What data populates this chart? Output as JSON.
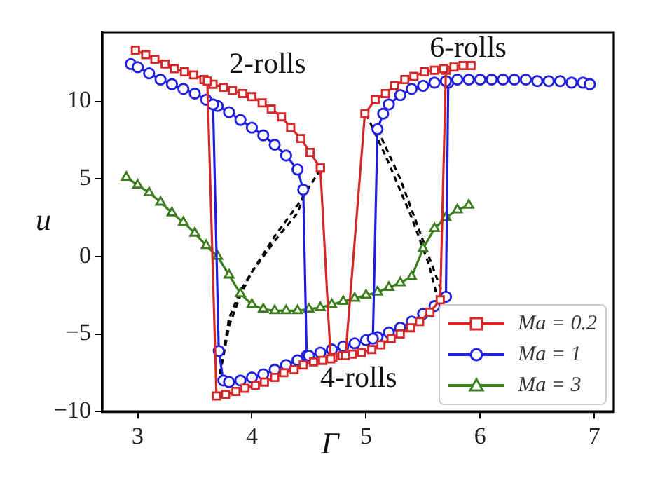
{
  "chart_data": {
    "type": "line",
    "xlabel": "Γ",
    "ylabel": "u",
    "xlim": [
      2.69,
      7.17
    ],
    "ylim": [
      -10,
      14.45
    ],
    "xticks": [
      3,
      4,
      5,
      6,
      7
    ],
    "yticks": [
      -10,
      -5,
      0,
      5,
      10
    ],
    "grid": false,
    "legend": "bottom right",
    "annotations": [
      "2-rolls",
      "6-rolls",
      "4-rolls"
    ],
    "series": [
      {
        "name": "Ma = 0.2",
        "color": "#d62728",
        "marker": "square",
        "line_style": "solid",
        "x": [
          2.98,
          3.07,
          3.15,
          3.24,
          3.32,
          3.41,
          3.49,
          3.58,
          3.66,
          3.75,
          3.83,
          3.92,
          4.0,
          4.09,
          4.17,
          4.26,
          4.34,
          4.43,
          4.51,
          4.6,
          null,
          3.61,
          3.69,
          3.77,
          3.86,
          3.94,
          4.03,
          4.11,
          4.2,
          4.28,
          4.37,
          4.45,
          4.54,
          4.62,
          4.71,
          4.79,
          4.88,
          4.96,
          5.05,
          5.13,
          5.22,
          5.3,
          5.39,
          5.47,
          5.56,
          5.65,
          5.7,
          null,
          4.6,
          4.69,
          null,
          4.82,
          4.99,
          5.08,
          5.17,
          5.25,
          5.34,
          5.42,
          5.51,
          5.6,
          5.68,
          5.77,
          5.85,
          5.92
        ],
        "values": [
          13.3,
          13.0,
          12.7,
          12.4,
          12.1,
          11.9,
          11.7,
          11.4,
          11.1,
          10.9,
          10.7,
          10.5,
          10.3,
          9.9,
          9.5,
          9.0,
          8.3,
          7.6,
          6.7,
          5.7,
          null,
          11.3,
          -9.0,
          -8.9,
          -8.7,
          -8.5,
          -8.3,
          -8.1,
          -7.8,
          -7.5,
          -7.3,
          -7.0,
          -6.8,
          -6.7,
          -6.5,
          -6.4,
          -6.3,
          -6.2,
          -6.0,
          -5.7,
          -5.3,
          -5.0,
          -4.6,
          -4.2,
          -3.6,
          -2.8,
          12.0,
          null,
          5.7,
          -6.6,
          null,
          -6.4,
          9.2,
          10.1,
          10.5,
          11.0,
          11.4,
          11.6,
          11.9,
          12.0,
          12.1,
          12.2,
          12.3,
          12.3
        ]
      },
      {
        "name": "Ma = 1",
        "color": "#1f1fe0",
        "marker": "circle",
        "line_style": "solid",
        "x": [
          2.94,
          3.0,
          3.1,
          3.2,
          3.3,
          3.4,
          3.5,
          3.6,
          3.7,
          3.8,
          3.9,
          4.0,
          4.1,
          4.2,
          4.3,
          4.4,
          4.45,
          4.48,
          null,
          3.66,
          3.71,
          3.75,
          3.8,
          3.9,
          4.0,
          4.1,
          4.2,
          4.3,
          4.4,
          4.5,
          4.6,
          4.7,
          4.8,
          4.9,
          5.0,
          5.1,
          5.2,
          5.3,
          5.4,
          5.5,
          5.6,
          5.7,
          5.72,
          null,
          5.06,
          5.1,
          5.15,
          5.2,
          5.3,
          5.4,
          5.5,
          5.6,
          5.7,
          5.8,
          5.9,
          6.0,
          6.1,
          6.2,
          6.3,
          6.4,
          6.5,
          6.6,
          6.7,
          6.8,
          6.9,
          6.96
        ],
        "values": [
          12.4,
          12.2,
          11.8,
          11.4,
          11.1,
          10.8,
          10.5,
          10.1,
          9.7,
          9.3,
          8.8,
          8.3,
          7.8,
          7.2,
          6.5,
          5.6,
          4.3,
          -6.4,
          null,
          9.8,
          -6.1,
          -8.0,
          -8.1,
          -8.0,
          -7.8,
          -7.6,
          -7.3,
          -7.0,
          -6.7,
          -6.4,
          -6.2,
          -6.0,
          -5.8,
          -5.6,
          -5.4,
          -5.2,
          -4.9,
          -4.6,
          -4.2,
          -3.7,
          -3.2,
          -2.6,
          11.2,
          null,
          -5.3,
          8.2,
          9.2,
          9.8,
          10.4,
          10.8,
          11.0,
          11.2,
          11.3,
          11.4,
          11.4,
          11.4,
          11.4,
          11.4,
          11.4,
          11.4,
          11.3,
          11.3,
          11.3,
          11.2,
          11.2,
          11.1
        ]
      },
      {
        "name": "Ma = 3",
        "color": "#3a7d1c",
        "marker": "triangle",
        "line_style": "solid",
        "x": [
          2.9,
          3.0,
          3.1,
          3.2,
          3.3,
          3.4,
          3.5,
          3.6,
          3.7,
          3.8,
          3.9,
          4.0,
          4.1,
          4.2,
          4.3,
          4.4,
          4.5,
          4.6,
          4.7,
          4.8,
          4.9,
          5.0,
          5.1,
          5.2,
          5.3,
          5.4,
          5.5,
          5.6,
          5.7,
          5.8,
          5.9
        ],
        "values": [
          5.1,
          4.6,
          4.1,
          3.5,
          2.8,
          2.2,
          1.5,
          0.7,
          0.0,
          -1.2,
          -2.4,
          -3.1,
          -3.4,
          -3.5,
          -3.5,
          -3.5,
          -3.4,
          -3.3,
          -3.1,
          -2.9,
          -2.7,
          -2.5,
          -2.3,
          -2.0,
          -1.7,
          -1.3,
          0.5,
          1.8,
          2.5,
          3.0,
          3.3
        ]
      },
      {
        "color": "#000000",
        "marker": "none",
        "line_style": "dashed",
        "x": [
          3.72,
          3.8,
          3.9,
          4.0,
          4.2,
          4.4,
          4.6
        ],
        "values": [
          -7.6,
          -4.5,
          -2.5,
          -1.0,
          1.3,
          3.3,
          5.6
        ]
      },
      {
        "color": "#000000",
        "marker": "none",
        "line_style": "dashed",
        "x": [
          3.72,
          3.8,
          3.9,
          4.0,
          4.2,
          4.4,
          4.47
        ],
        "values": [
          -7.6,
          -4.0,
          -2.2,
          -1.0,
          1.0,
          2.8,
          4.2
        ]
      },
      {
        "color": "#000000",
        "marker": "none",
        "line_style": "dashed",
        "x": [
          5.0,
          5.2,
          5.4,
          5.55,
          5.63
        ],
        "values": [
          9.2,
          6.0,
          2.5,
          -0.5,
          -2.8
        ]
      },
      {
        "color": "#000000",
        "marker": "none",
        "line_style": "dashed",
        "x": [
          5.1,
          5.3,
          5.45,
          5.6,
          5.68
        ],
        "values": [
          8.2,
          5.0,
          2.0,
          -1.0,
          -2.6
        ]
      }
    ]
  }
}
